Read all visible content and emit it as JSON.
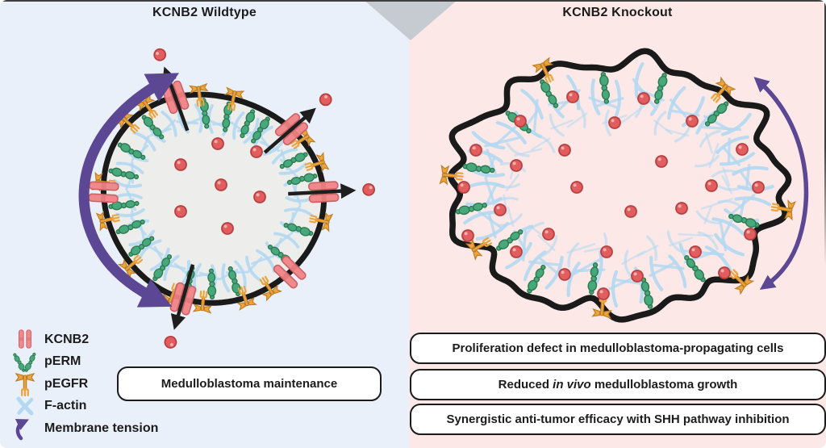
{
  "panels": {
    "wildtype": {
      "title": "KCNB2 Wildtype",
      "box_label": "Medulloblastoma maintenance"
    },
    "knockout": {
      "title": "KCNB2 Knockout",
      "boxes": [
        {
          "text": "Proliferation defect in medulloblastoma-propagating cells"
        },
        {
          "prefix": "Reduced ",
          "italic": "in vivo",
          "suffix": " medulloblastoma growth"
        },
        {
          "text": "Synergistic anti-tumor efficacy with SHH pathway inhibition"
        }
      ]
    }
  },
  "legend": {
    "items": [
      {
        "icon": "kcnb2-channel-icon",
        "label": "KCNB2"
      },
      {
        "icon": "perm-icon",
        "label": "pERM"
      },
      {
        "icon": "pegfr-icon",
        "label": "pEGFR"
      },
      {
        "icon": "f-actin-icon",
        "label": "F-actin"
      },
      {
        "icon": "membrane-tension-icon",
        "label": "Membrane tension"
      }
    ]
  },
  "colors": {
    "left_panel_bg": "#eaf0f9",
    "right_panel_bg": "#fce9e7",
    "cell_interior": "#ededeb",
    "membrane": "#1a1a1a",
    "f_actin": "#b3d8f2",
    "perm_green": "#46a87b",
    "perm_outline": "#2e7b53",
    "pegfr_orange": "#eca43f",
    "pegfr_outline": "#bd7d20",
    "kcnb2_red": "#f0898b",
    "kcnb2_outline": "#cd6064",
    "ion_red": "#e25d5d",
    "ion_outline": "#b74043",
    "arrow_black": "#1e1e1e",
    "tension_purple": "#5c4795",
    "box_bg": "#ffffff",
    "box_border": "#1b1b1b",
    "text": "#1c1c1c",
    "corner_gray": "#c6cbd1"
  }
}
